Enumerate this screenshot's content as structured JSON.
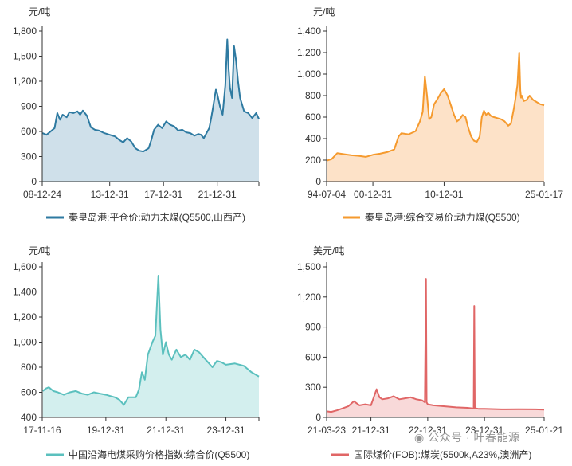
{
  "watermark": {
    "text": "公众号 · 叶春能源",
    "icon": "wechat-icon"
  },
  "chart_data": [
    {
      "id": "c1",
      "type": "area",
      "unit": "元/吨",
      "color": "#2e7aa1",
      "fill": "#cfe0ea",
      "ylim": [
        0,
        1800
      ],
      "yticks": [
        0,
        300,
        600,
        900,
        1200,
        1500,
        1800
      ],
      "xlim": [
        2008.98,
        2025.1
      ],
      "xticks": [
        {
          "x": 2008.98,
          "label": "08-12-24"
        },
        {
          "x": 2014.0,
          "label": "13-12-31"
        },
        {
          "x": 2018.0,
          "label": "17-12-31"
        },
        {
          "x": 2022.0,
          "label": "21-12-31"
        }
      ],
      "legend": "秦皇岛港:平仓价:动力末煤(Q5500,山西产)",
      "series": {
        "x": [
          2009.0,
          2009.3,
          2009.6,
          2009.9,
          2010.1,
          2010.3,
          2010.5,
          2010.8,
          2011.0,
          2011.3,
          2011.6,
          2011.8,
          2012.0,
          2012.3,
          2012.6,
          2012.9,
          2013.2,
          2013.6,
          2014.0,
          2014.4,
          2014.7,
          2015.0,
          2015.3,
          2015.6,
          2015.9,
          2016.2,
          2016.5,
          2016.7,
          2016.9,
          2017.1,
          2017.3,
          2017.6,
          2017.9,
          2018.2,
          2018.5,
          2018.8,
          2019.1,
          2019.4,
          2019.7,
          2020.0,
          2020.3,
          2020.6,
          2020.8,
          2021.0,
          2021.2,
          2021.4,
          2021.55,
          2021.7,
          2021.8,
          2021.9,
          2022.0,
          2022.2,
          2022.4,
          2022.6,
          2022.75,
          2022.85,
          2022.95,
          2023.1,
          2023.25,
          2023.4,
          2023.55,
          2023.7,
          2023.85,
          2024.0,
          2024.3,
          2024.6,
          2024.9,
          2025.1
        ],
        "y": [
          580,
          560,
          600,
          640,
          820,
          740,
          800,
          770,
          830,
          820,
          840,
          800,
          850,
          790,
          650,
          620,
          610,
          580,
          560,
          540,
          500,
          470,
          520,
          480,
          400,
          370,
          360,
          380,
          400,
          500,
          620,
          680,
          640,
          720,
          680,
          660,
          610,
          620,
          590,
          580,
          550,
          570,
          560,
          520,
          580,
          640,
          760,
          900,
          1000,
          1100,
          1050,
          900,
          800,
          1150,
          1700,
          1350,
          1120,
          1000,
          1620,
          1450,
          1200,
          1000,
          920,
          840,
          820,
          760,
          820,
          750
        ]
      }
    },
    {
      "id": "c2",
      "type": "area",
      "unit": "元/吨",
      "color": "#f59a2e",
      "fill": "#fde2c8",
      "ylim": [
        0,
        1400
      ],
      "yticks": [
        0,
        200,
        400,
        600,
        800,
        1000,
        1200,
        1400
      ],
      "xlim": [
        1994.5,
        2025.05
      ],
      "xticks": [
        {
          "x": 1994.5,
          "label": "94-07-04"
        },
        {
          "x": 2001.0,
          "label": "00-12-31"
        },
        {
          "x": 2011.0,
          "label": "10-12-31"
        },
        {
          "x": 2025.05,
          "label": "25-01-17"
        }
      ],
      "legend": "秦皇岛港:综合交易价:动力煤(Q5500)",
      "series": {
        "x": [
          1994.5,
          1995.2,
          1996.0,
          1997.0,
          1998.0,
          1999.0,
          2000.0,
          2001.0,
          2002.0,
          2003.0,
          2004.0,
          2004.6,
          2005.0,
          2006.0,
          2007.0,
          2007.6,
          2008.0,
          2008.3,
          2008.6,
          2008.9,
          2009.2,
          2009.6,
          2010.0,
          2010.5,
          2011.0,
          2011.5,
          2012.0,
          2012.4,
          2012.8,
          2013.2,
          2013.6,
          2014.0,
          2014.4,
          2014.8,
          2015.2,
          2015.6,
          2016.0,
          2016.3,
          2016.6,
          2016.9,
          2017.2,
          2017.6,
          2018.0,
          2018.5,
          2019.0,
          2019.5,
          2020.0,
          2020.4,
          2020.8,
          2021.0,
          2021.3,
          2021.55,
          2021.7,
          2021.8,
          2021.9,
          2022.2,
          2022.6,
          2023.0,
          2023.5,
          2024.0,
          2024.5,
          2025.05
        ],
        "y": [
          195,
          210,
          265,
          255,
          245,
          240,
          230,
          250,
          260,
          275,
          300,
          420,
          450,
          440,
          470,
          560,
          650,
          980,
          800,
          580,
          600,
          720,
          760,
          820,
          860,
          800,
          700,
          620,
          560,
          580,
          620,
          600,
          500,
          420,
          380,
          370,
          420,
          600,
          660,
          620,
          640,
          610,
          600,
          590,
          580,
          560,
          520,
          540,
          680,
          760,
          900,
          1200,
          850,
          780,
          800,
          750,
          760,
          800,
          760,
          740,
          720,
          710
        ]
      }
    },
    {
      "id": "c3",
      "type": "area",
      "unit": "元/吨",
      "color": "#5bc0be",
      "fill": "#d3efee",
      "ylim": [
        400,
        1600
      ],
      "yticks": [
        400,
        600,
        800,
        1000,
        1200,
        1400,
        1600
      ],
      "xlim": [
        2017.88,
        2025.1
      ],
      "xticks": [
        {
          "x": 2017.88,
          "label": "17-11-16"
        },
        {
          "x": 2020.0,
          "label": "19-12-31"
        },
        {
          "x": 2022.0,
          "label": "21-12-31"
        },
        {
          "x": 2024.0,
          "label": "23-12-31"
        }
      ],
      "legend": "中国沿海电煤采购价格指数:综合价(Q5500)",
      "series": {
        "x": [
          2017.9,
          2018.0,
          2018.1,
          2018.25,
          2018.4,
          2018.6,
          2018.8,
          2019.0,
          2019.2,
          2019.4,
          2019.6,
          2019.8,
          2020.0,
          2020.15,
          2020.3,
          2020.45,
          2020.6,
          2020.75,
          2020.9,
          2021.0,
          2021.1,
          2021.2,
          2021.3,
          2021.4,
          2021.55,
          2021.65,
          2021.75,
          2021.82,
          2021.9,
          2022.0,
          2022.1,
          2022.2,
          2022.35,
          2022.5,
          2022.65,
          2022.8,
          2022.95,
          2023.1,
          2023.25,
          2023.4,
          2023.55,
          2023.7,
          2023.85,
          2024.0,
          2024.3,
          2024.6,
          2024.85,
          2025.1
        ],
        "y": [
          610,
          630,
          640,
          610,
          600,
          580,
          600,
          610,
          590,
          580,
          600,
          590,
          580,
          570,
          560,
          540,
          500,
          560,
          560,
          560,
          620,
          760,
          700,
          900,
          1000,
          1050,
          1530,
          1100,
          900,
          1000,
          900,
          860,
          940,
          880,
          900,
          860,
          940,
          920,
          880,
          840,
          800,
          850,
          840,
          820,
          830,
          810,
          760,
          725
        ]
      }
    },
    {
      "id": "c4",
      "type": "area",
      "unit": "美元/吨",
      "color": "#e06666",
      "fill": "#f8d9d9",
      "ylim": [
        0,
        1500
      ],
      "yticks": [
        0,
        300,
        600,
        900,
        1200,
        1500
      ],
      "xlim": [
        2021.22,
        2025.05
      ],
      "xticks": [
        {
          "x": 2021.22,
          "label": "21-03-23"
        },
        {
          "x": 2022.0,
          "label": "21-12-31"
        },
        {
          "x": 2023.0,
          "label": "22-12-31"
        },
        {
          "x": 2024.0,
          "label": "23-12-31"
        },
        {
          "x": 2025.05,
          "label": "25-01-21"
        }
      ],
      "legend": "国际煤价(FOB):煤炭(5500k,A23%,澳洲产)",
      "series": {
        "x": [
          2021.22,
          2021.3,
          2021.4,
          2021.5,
          2021.6,
          2021.7,
          2021.8,
          2021.9,
          2022.0,
          2022.1,
          2022.15,
          2022.2,
          2022.3,
          2022.4,
          2022.5,
          2022.6,
          2022.7,
          2022.8,
          2022.9,
          2022.95,
          2022.97,
          2022.98,
          2022.99,
          2023.0,
          2023.1,
          2023.3,
          2023.5,
          2023.7,
          2023.79,
          2023.81,
          2023.82,
          2023.83,
          2023.85,
          2023.9,
          2024.0,
          2024.3,
          2024.6,
          2024.9,
          2025.05
        ],
        "y": [
          60,
          55,
          70,
          90,
          110,
          160,
          120,
          130,
          120,
          280,
          200,
          180,
          190,
          210,
          180,
          190,
          200,
          180,
          170,
          150,
          1380,
          150,
          140,
          130,
          120,
          110,
          100,
          95,
          90,
          90,
          1110,
          90,
          90,
          85,
          85,
          80,
          82,
          80,
          78
        ]
      }
    }
  ]
}
